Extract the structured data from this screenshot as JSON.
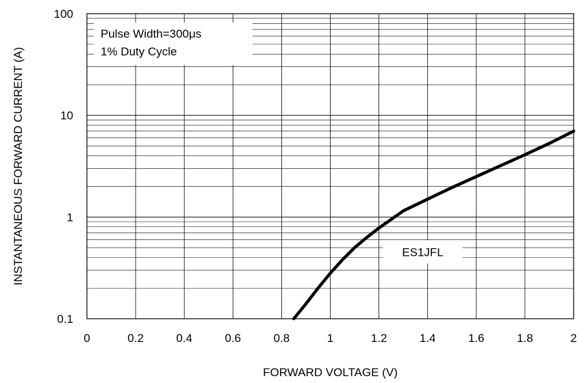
{
  "chart_data": {
    "type": "line",
    "title": "",
    "xlabel": "FORWARD VOLTAGE (V)",
    "ylabel": "INSTANTANEOUS FORWARD CURRENT (A)",
    "xlim": [
      0,
      2
    ],
    "ylim": [
      0.1,
      100
    ],
    "y_scale": "log",
    "grid": true,
    "x_ticks": [
      "0",
      "0.2",
      "0.4",
      "0.6",
      "0.8",
      "1",
      "1.2",
      "1.4",
      "1.6",
      "1.8",
      "2"
    ],
    "y_ticks": [
      "0.1",
      "1",
      "10",
      "100"
    ],
    "annotations": [
      "Pulse Width=300μs",
      "1% Duty Cycle"
    ],
    "series": [
      {
        "name": "ES1JFL",
        "color": "#000000",
        "x": [
          0.85,
          0.9,
          0.95,
          1.0,
          1.05,
          1.1,
          1.15,
          1.2,
          1.3,
          1.4,
          1.5,
          1.6,
          1.7,
          1.8,
          1.9,
          2.0
        ],
        "y": [
          0.1,
          0.14,
          0.2,
          0.28,
          0.38,
          0.5,
          0.63,
          0.78,
          1.15,
          1.5,
          1.95,
          2.5,
          3.2,
          4.1,
          5.3,
          7.0
        ]
      }
    ]
  }
}
